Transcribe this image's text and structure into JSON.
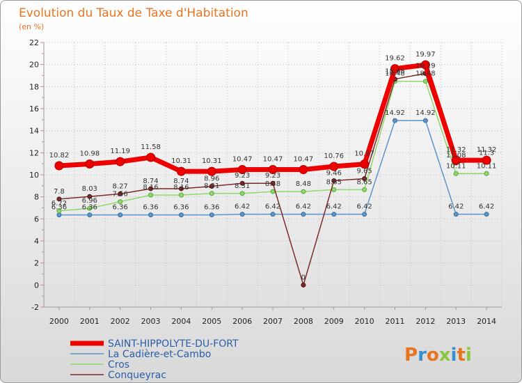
{
  "chart_data": {
    "type": "line",
    "title": "Evolution du Taux de Taxe d'Habitation",
    "subtitle": "(en %)",
    "xlabel": "",
    "ylabel": "",
    "ylim": [
      -2,
      22
    ],
    "yticks": [
      "-2",
      "0",
      "2",
      "4",
      "6",
      "8",
      "10",
      "12",
      "14",
      "16",
      "18",
      "20",
      "22"
    ],
    "categories": [
      "2000",
      "2001",
      "2002",
      "2003",
      "2004",
      "2005",
      "2006",
      "2007",
      "2008",
      "2009",
      "2010",
      "2011",
      "2012",
      "2013",
      "2014"
    ],
    "series": [
      {
        "name": "SAINT-HIPPOLYTE-DU-FORT",
        "color": "#ee0000",
        "values": [
          10.82,
          10.98,
          11.19,
          11.58,
          10.31,
          10.31,
          10.47,
          10.47,
          10.47,
          10.76,
          10.97,
          19.62,
          19.97,
          11.32,
          11.32
        ],
        "labels": [
          "10.82",
          "10.98",
          "11.19",
          "11.58",
          "10.31",
          "10.31",
          "10.47",
          "10.47",
          "10.47",
          "10.76",
          "10.97",
          "19.62",
          "19.97",
          "11.32",
          "11.32"
        ]
      },
      {
        "name": "La Cadière-et-Cambo",
        "color": "#5b95c9",
        "values": [
          6.36,
          6.36,
          6.36,
          6.36,
          6.36,
          6.36,
          6.42,
          6.42,
          6.42,
          6.42,
          6.42,
          14.92,
          14.92,
          6.42,
          6.42
        ],
        "labels": [
          "6.36",
          "6.36",
          "6.36",
          "6.36",
          "6.36",
          "6.36",
          "6.42",
          "6.42",
          "6.42",
          "6.42",
          "6.42",
          "14.92",
          "14.92",
          "6.42",
          "6.42"
        ]
      },
      {
        "name": "Cros",
        "color": "#8ed96a",
        "values": [
          6.72,
          6.96,
          7.56,
          8.16,
          8.16,
          8.31,
          8.31,
          8.48,
          8.48,
          8.65,
          8.65,
          18.48,
          18.48,
          10.11,
          10.11
        ],
        "labels": [
          "6.72",
          "6.96",
          "7.56",
          "8.16",
          "8.16",
          "8.31",
          "8.31",
          "8.48",
          "8.48",
          "8.65",
          "8.65",
          "18.48",
          "18.48",
          "10.11",
          "10.11"
        ]
      },
      {
        "name": "Conqueyrac",
        "color": "#7a2a2a",
        "values": [
          7.8,
          8.03,
          8.27,
          8.74,
          8.74,
          8.96,
          9.23,
          9.23,
          0,
          9.46,
          9.65,
          18.68,
          19.19,
          11.08,
          11.3
        ],
        "labels": [
          "7.8",
          "8.03",
          "8.27",
          "8.74",
          "8.74",
          "8.96",
          "9.23",
          "9.23",
          "0",
          "9.46",
          "9.65",
          "18.68",
          "19.19",
          "11.08",
          "11.3"
        ]
      }
    ]
  },
  "branding": {
    "logo_text": "Proxiti"
  }
}
